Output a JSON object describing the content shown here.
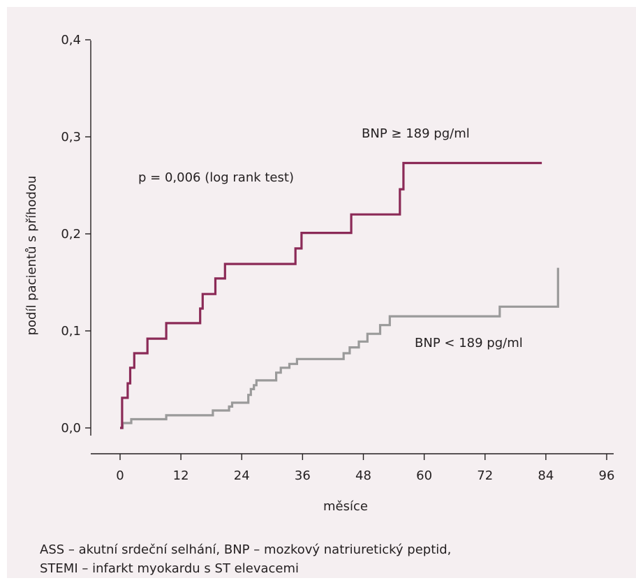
{
  "chart_data": {
    "type": "line",
    "step": true,
    "xlabel": "měsíce",
    "ylabel": "podíl pacientů s příhodou",
    "xlim": [
      0,
      96
    ],
    "ylim": [
      0,
      0.4
    ],
    "x_ticks": [
      "0",
      "12",
      "24",
      "36",
      "48",
      "60",
      "72",
      "84",
      "96"
    ],
    "y_ticks": [
      "0,0",
      "0,1",
      "0,2",
      "0,3",
      "0,4"
    ],
    "x_tick_values": [
      0,
      12,
      24,
      36,
      48,
      60,
      72,
      84,
      96
    ],
    "y_tick_values": [
      0,
      0.1,
      0.2,
      0.3,
      0.4
    ],
    "grid": false,
    "annotations": {
      "high": "BNP ≥ 189 pg/ml",
      "low": "BNP < 189 pg/ml",
      "pvalue": "p = 0,006  (log rank test)"
    },
    "series": [
      {
        "name": "BNP ≥ 189 pg/ml",
        "color": "#8b2a57",
        "x": [
          0,
          0.4,
          1.5,
          2,
          2.8,
          5.4,
          9.1,
          15.8,
          16.3,
          18.8,
          20.7,
          34.6,
          35.8,
          45.6,
          55.2,
          55.9,
          83.2
        ],
        "y": [
          0,
          0.031,
          0.046,
          0.062,
          0.077,
          0.092,
          0.108,
          0.123,
          0.138,
          0.154,
          0.169,
          0.185,
          0.201,
          0.22,
          0.246,
          0.273,
          0.273
        ]
      },
      {
        "name": "BNP < 189 pg/ml",
        "color": "#9a9a9a",
        "x": [
          0,
          0.5,
          2.2,
          9.1,
          18.3,
          21.5,
          22.1,
          25.3,
          25.8,
          26.4,
          26.9,
          30.8,
          31.7,
          33.4,
          34.9,
          44.1,
          45.3,
          47.1,
          48.8,
          51.3,
          53.2,
          74.9,
          86.4
        ],
        "y": [
          0,
          0.005,
          0.009,
          0.013,
          0.018,
          0.022,
          0.026,
          0.034,
          0.04,
          0.044,
          0.049,
          0.057,
          0.062,
          0.066,
          0.071,
          0.077,
          0.083,
          0.089,
          0.097,
          0.106,
          0.115,
          0.125,
          0.165
        ]
      }
    ]
  },
  "caption": [
    "ASS – akutní srdeční selhání, BNP – mozkový natriuretický peptid,",
    "STEMI – infarkt myokardu s ST elevacemi"
  ]
}
